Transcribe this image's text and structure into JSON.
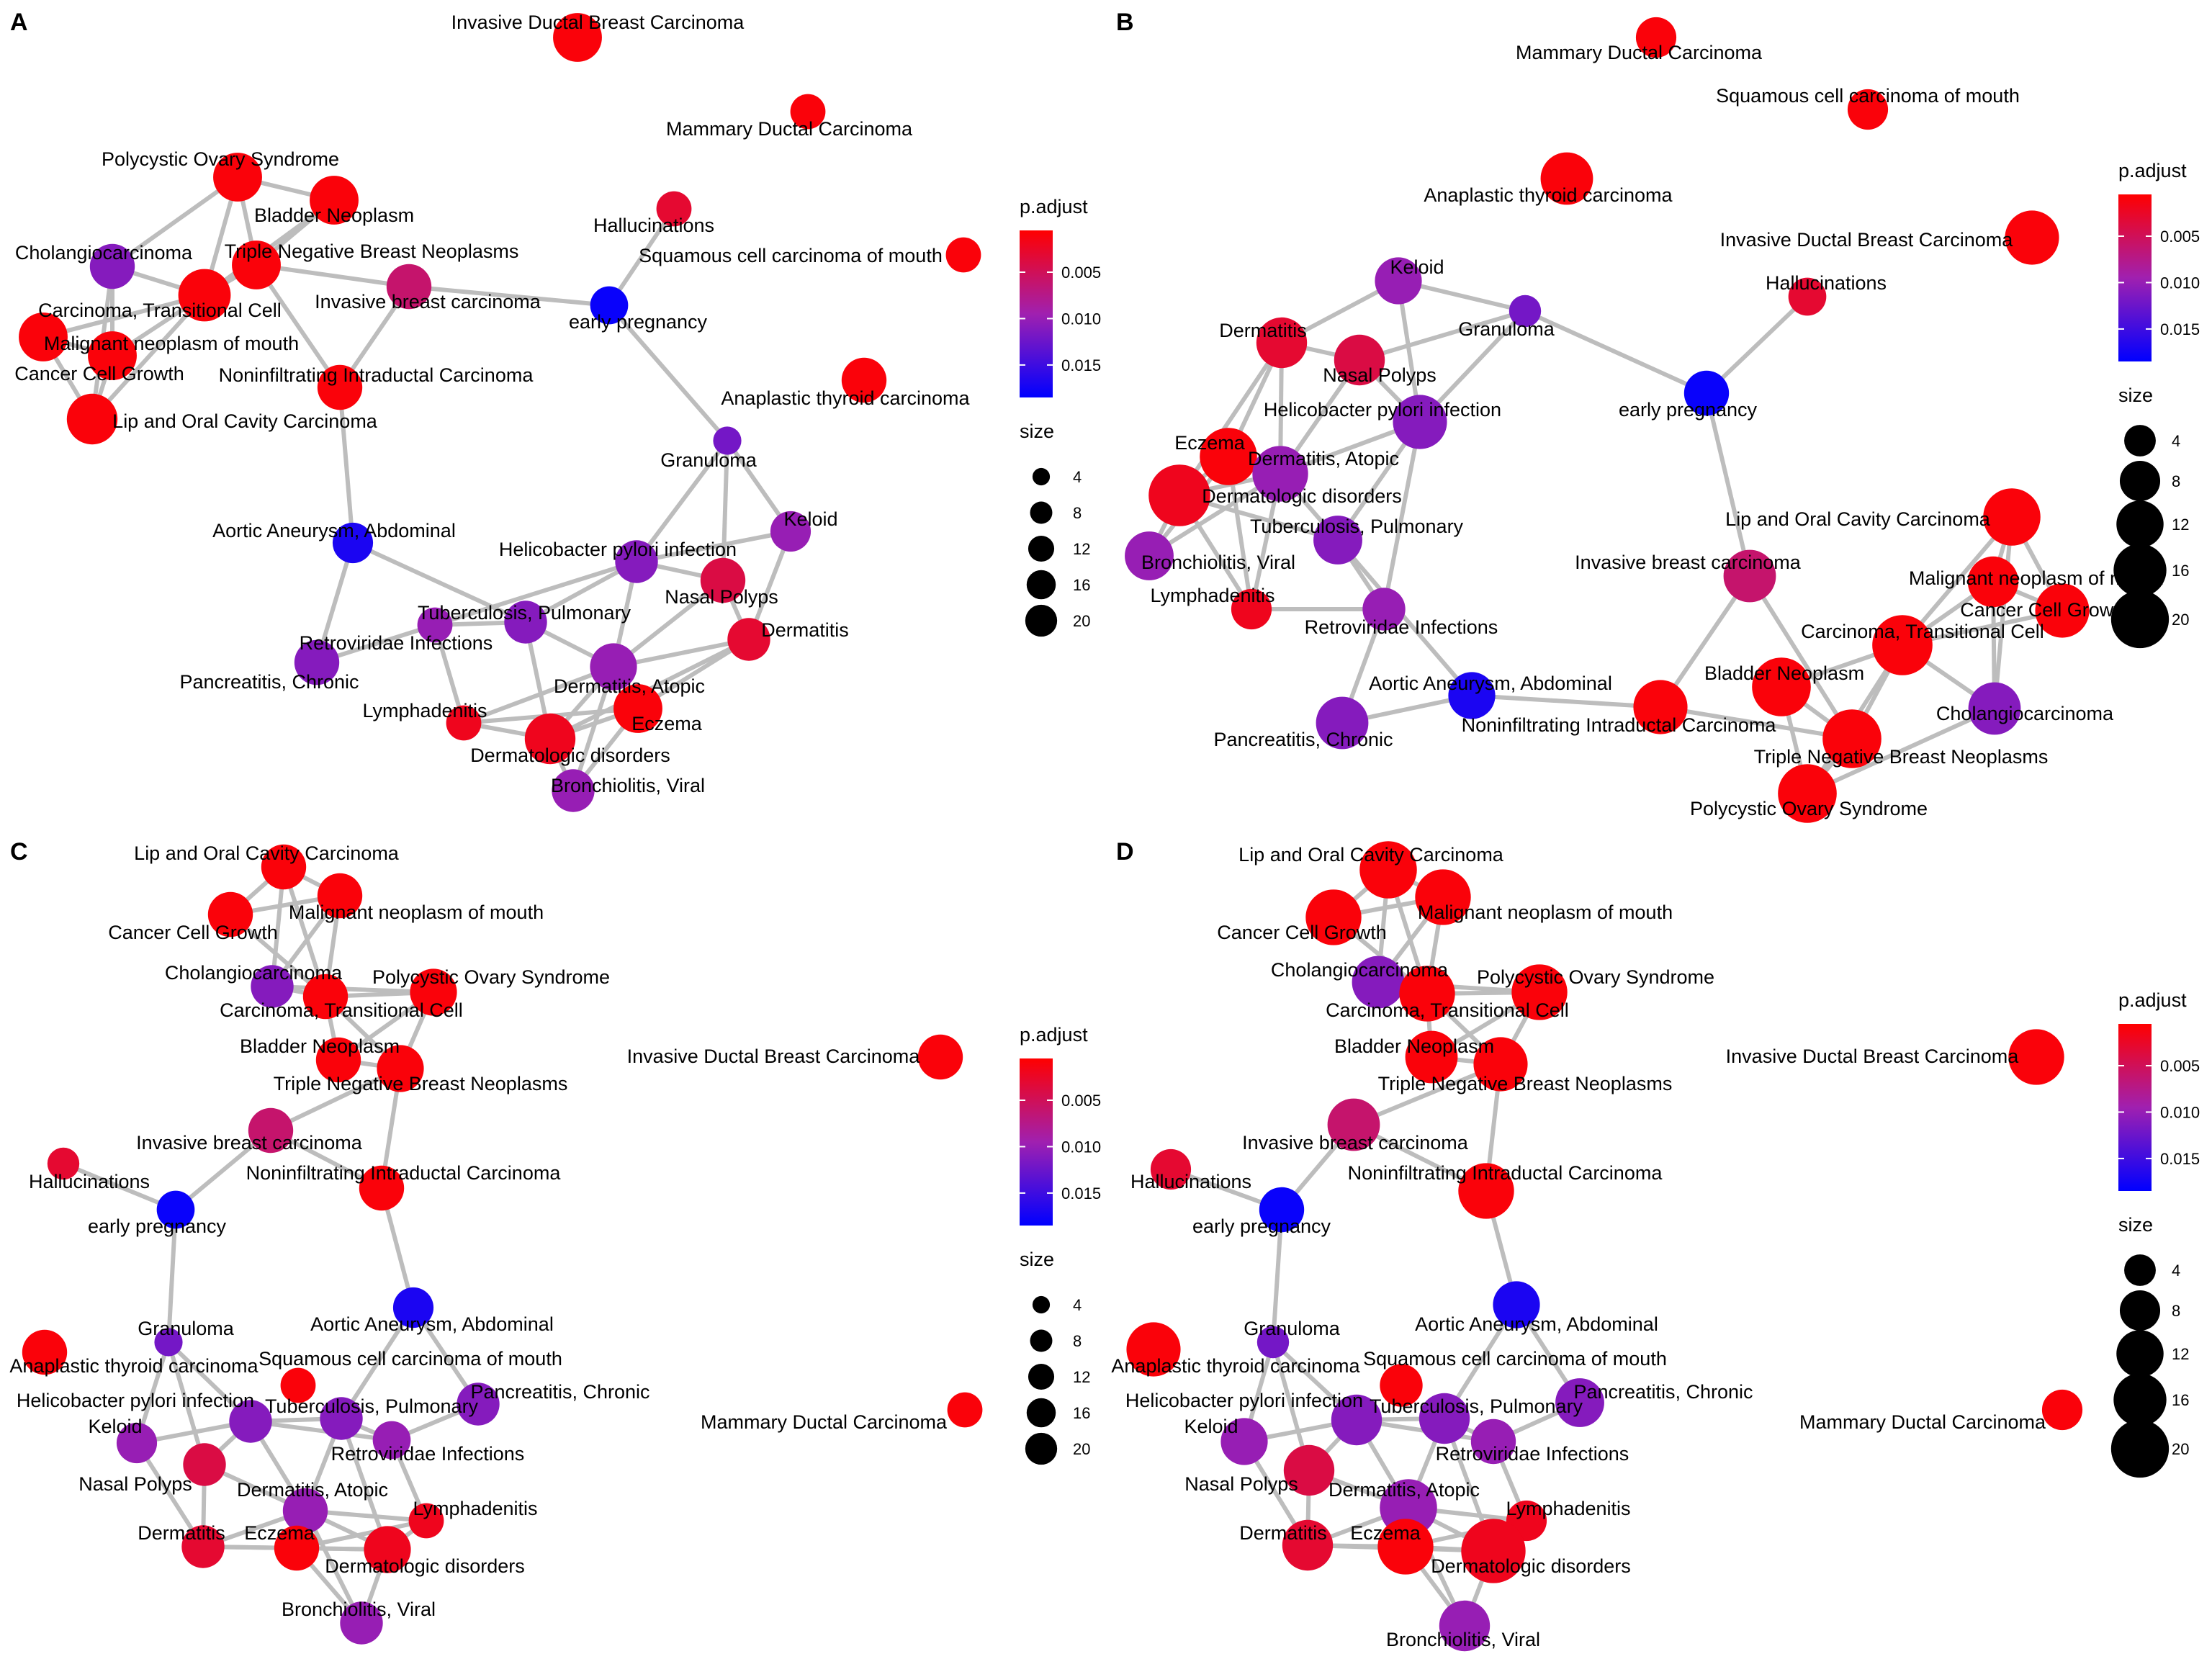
{
  "legend_titles": {
    "color": "p.adjust",
    "size": "size"
  },
  "legend_color_ticks": [
    "0.005",
    "0.010",
    "0.015"
  ],
  "legend_color_values": [
    0.005,
    0.01,
    0.015
  ],
  "legend_color_range": [
    0.0005,
    0.0185
  ],
  "legend_size_ticks": [
    "4",
    "8",
    "12",
    "16",
    "20"
  ],
  "legend_size_values": [
    4,
    8,
    12,
    16,
    20
  ],
  "colors": {
    "low": "#ff0000",
    "mid": "#a020b0",
    "high": "#0000ff",
    "edge": "#bdbdbd"
  },
  "panels": [
    {
      "label": "A",
      "nodes": [
        {
          "name": "Invasive Ductal Breast Carcinoma",
          "size": 10,
          "p": 0.001
        },
        {
          "name": "Mammary Ductal Carcinoma",
          "size": 4,
          "p": 0.001
        },
        {
          "name": "Polycystic Ovary Syndrome",
          "size": 10,
          "p": 0.001
        },
        {
          "name": "Bladder Neoplasm",
          "size": 10,
          "p": 0.001
        },
        {
          "name": "Hallucinations",
          "size": 4,
          "p": 0.003
        },
        {
          "name": "Cholangiocarcinoma",
          "size": 8,
          "p": 0.011
        },
        {
          "name": "Triple Negative Breast Neoplasms",
          "size": 10,
          "p": 0.001
        },
        {
          "name": "Squamous cell carcinoma of mouth",
          "size": 4,
          "p": 0.001
        },
        {
          "name": "Invasive breast carcinoma",
          "size": 8,
          "p": 0.006
        },
        {
          "name": "Carcinoma, Transitional Cell",
          "size": 12,
          "p": 0.001
        },
        {
          "name": "early pregnancy",
          "size": 5,
          "p": 0.018
        },
        {
          "name": "Malignant neoplasm of mouth",
          "size": 10,
          "p": 0.001
        },
        {
          "name": "Cancer Cell Growth",
          "size": 10,
          "p": 0.001
        },
        {
          "name": "Noninfiltrating Intraductal Carcinoma",
          "size": 8,
          "p": 0.001
        },
        {
          "name": "Lip and Oral Cavity Carcinoma",
          "size": 11,
          "p": 0.001
        },
        {
          "name": "Anaplastic thyroid carcinoma",
          "size": 8,
          "p": 0.001
        },
        {
          "name": "Granuloma",
          "size": 2,
          "p": 0.012
        },
        {
          "name": "Keloid",
          "size": 6,
          "p": 0.01
        },
        {
          "name": "Aortic Aneurysm, Abdominal",
          "size": 6,
          "p": 0.017
        },
        {
          "name": "Helicobacter pylori infection",
          "size": 7,
          "p": 0.011
        },
        {
          "name": "Nasal Polyps",
          "size": 8,
          "p": 0.004
        },
        {
          "name": "Tuberculosis, Pulmonary",
          "size": 7,
          "p": 0.011
        },
        {
          "name": "Retroviridae Infections",
          "size": 4,
          "p": 0.01
        },
        {
          "name": "Dermatitis",
          "size": 7,
          "p": 0.003
        },
        {
          "name": "Pancreatitis, Chronic",
          "size": 8,
          "p": 0.011
        },
        {
          "name": "Dermatitis, Atopic",
          "size": 9,
          "p": 0.01
        },
        {
          "name": "Lymphadenitis",
          "size": 4,
          "p": 0.002
        },
        {
          "name": "Eczema",
          "size": 10,
          "p": 0.001
        },
        {
          "name": "Dermatologic disorders",
          "size": 11,
          "p": 0.002
        },
        {
          "name": "Bronchiolitis, Viral",
          "size": 7,
          "p": 0.01
        }
      ]
    },
    {
      "label": "B",
      "nodes": [
        {
          "name": "Mammary Ductal Carcinoma",
          "size": 6,
          "p": 0.001
        },
        {
          "name": "Squamous cell carcinoma of mouth",
          "size": 6,
          "p": 0.001
        },
        {
          "name": "Anaplastic thyroid carcinoma",
          "size": 12,
          "p": 0.001
        },
        {
          "name": "Invasive Ductal Breast Carcinoma",
          "size": 13,
          "p": 0.001
        },
        {
          "name": "Hallucinations",
          "size": 5,
          "p": 0.003
        },
        {
          "name": "Keloid",
          "size": 9,
          "p": 0.01
        },
        {
          "name": "Granuloma",
          "size": 3,
          "p": 0.012
        },
        {
          "name": "Dermatitis",
          "size": 11,
          "p": 0.003
        },
        {
          "name": "Nasal Polyps",
          "size": 11,
          "p": 0.004
        },
        {
          "name": "early pregnancy",
          "size": 8,
          "p": 0.018
        },
        {
          "name": "Helicobacter pylori infection",
          "size": 13,
          "p": 0.011
        },
        {
          "name": "Eczema",
          "size": 15,
          "p": 0.001
        },
        {
          "name": "Dermatitis, Atopic",
          "size": 14,
          "p": 0.01
        },
        {
          "name": "Dermatologic disorders",
          "size": 18,
          "p": 0.002
        },
        {
          "name": "Tuberculosis, Pulmonary",
          "size": 10,
          "p": 0.011
        },
        {
          "name": "Lip and Oral Cavity Carcinoma",
          "size": 15,
          "p": 0.001
        },
        {
          "name": "Bronchiolitis, Viral",
          "size": 10,
          "p": 0.01
        },
        {
          "name": "Invasive breast carcinoma",
          "size": 12,
          "p": 0.006
        },
        {
          "name": "Malignant neoplasm of mouth",
          "size": 11,
          "p": 0.001
        },
        {
          "name": "Lymphadenitis",
          "size": 6,
          "p": 0.002
        },
        {
          "name": "Cancer Cell Growth",
          "size": 13,
          "p": 0.001
        },
        {
          "name": "Retroviridae Infections",
          "size": 7,
          "p": 0.01
        },
        {
          "name": "Carcinoma, Transitional Cell",
          "size": 17,
          "p": 0.001
        },
        {
          "name": "Bladder Neoplasm",
          "size": 16,
          "p": 0.001
        },
        {
          "name": "Aortic Aneurysm, Abdominal",
          "size": 9,
          "p": 0.017
        },
        {
          "name": "Cholangiocarcinoma",
          "size": 12,
          "p": 0.011
        },
        {
          "name": "Noninfiltrating Intraductal Carcinoma",
          "size": 13,
          "p": 0.001
        },
        {
          "name": "Pancreatitis, Chronic",
          "size": 12,
          "p": 0.011
        },
        {
          "name": "Triple Negative Breast Neoplasms",
          "size": 16,
          "p": 0.001
        },
        {
          "name": "Polycystic Ovary Syndrome",
          "size": 16,
          "p": 0.001
        }
      ]
    },
    {
      "label": "C",
      "nodes": [
        {
          "name": "Lip and Oral Cavity Carcinoma",
          "size": 8,
          "p": 0.001
        },
        {
          "name": "Malignant neoplasm of mouth",
          "size": 8,
          "p": 0.001
        },
        {
          "name": "Cancer Cell Growth",
          "size": 8,
          "p": 0.001
        },
        {
          "name": "Cholangiocarcinoma",
          "size": 7,
          "p": 0.011
        },
        {
          "name": "Polycystic Ovary Syndrome",
          "size": 9,
          "p": 0.001
        },
        {
          "name": "Carcinoma, Transitional Cell",
          "size": 8,
          "p": 0.001
        },
        {
          "name": "Bladder Neoplasm",
          "size": 8,
          "p": 0.001
        },
        {
          "name": "Invasive Ductal Breast Carcinoma",
          "size": 8,
          "p": 0.001
        },
        {
          "name": "Triple Negative Breast Neoplasms",
          "size": 9,
          "p": 0.001
        },
        {
          "name": "Invasive breast carcinoma",
          "size": 8,
          "p": 0.006
        },
        {
          "name": "Hallucinations",
          "size": 3,
          "p": 0.003
        },
        {
          "name": "Noninfiltrating Intraductal Carcinoma",
          "size": 8,
          "p": 0.001
        },
        {
          "name": "early pregnancy",
          "size": 5,
          "p": 0.018
        },
        {
          "name": "Aortic Aneurysm, Abdominal",
          "size": 6,
          "p": 0.017
        },
        {
          "name": "Granuloma",
          "size": 2,
          "p": 0.012
        },
        {
          "name": "Anaplastic thyroid carcinoma",
          "size": 8,
          "p": 0.001
        },
        {
          "name": "Squamous cell carcinoma of mouth",
          "size": 4,
          "p": 0.001
        },
        {
          "name": "Pancreatitis, Chronic",
          "size": 7,
          "p": 0.011
        },
        {
          "name": "Helicobacter pylori infection",
          "size": 7,
          "p": 0.011
        },
        {
          "name": "Tuberculosis, Pulmonary",
          "size": 7,
          "p": 0.011
        },
        {
          "name": "Mammary Ductal Carcinoma",
          "size": 4,
          "p": 0.001
        },
        {
          "name": "Keloid",
          "size": 6,
          "p": 0.01
        },
        {
          "name": "Retroviridae Infections",
          "size": 5,
          "p": 0.01
        },
        {
          "name": "Nasal Polyps",
          "size": 7,
          "p": 0.004
        },
        {
          "name": "Dermatitis, Atopic",
          "size": 8,
          "p": 0.01
        },
        {
          "name": "Lymphadenitis",
          "size": 4,
          "p": 0.002
        },
        {
          "name": "Dermatitis",
          "size": 7,
          "p": 0.003
        },
        {
          "name": "Eczema",
          "size": 8,
          "p": 0.001
        },
        {
          "name": "Dermatologic disorders",
          "size": 9,
          "p": 0.002
        },
        {
          "name": "Bronchiolitis, Viral",
          "size": 7,
          "p": 0.01
        }
      ]
    },
    {
      "label": "D",
      "nodes": [
        {
          "name": "Lip and Oral Cavity Carcinoma",
          "size": 15,
          "p": 0.001
        },
        {
          "name": "Malignant neoplasm of mouth",
          "size": 14,
          "p": 0.001
        },
        {
          "name": "Cancer Cell Growth",
          "size": 14,
          "p": 0.001
        },
        {
          "name": "Cholangiocarcinoma",
          "size": 12,
          "p": 0.011
        },
        {
          "name": "Polycystic Ovary Syndrome",
          "size": 14,
          "p": 0.001
        },
        {
          "name": "Carcinoma, Transitional Cell",
          "size": 14,
          "p": 0.001
        },
        {
          "name": "Bladder Neoplasm",
          "size": 12,
          "p": 0.001
        },
        {
          "name": "Invasive Ductal Breast Carcinoma",
          "size": 14,
          "p": 0.001
        },
        {
          "name": "Triple Negative Breast Neoplasms",
          "size": 13,
          "p": 0.001
        },
        {
          "name": "Invasive breast carcinoma",
          "size": 12,
          "p": 0.006
        },
        {
          "name": "Hallucinations",
          "size": 6,
          "p": 0.003
        },
        {
          "name": "Noninfiltrating Intraductal Carcinoma",
          "size": 14,
          "p": 0.001
        },
        {
          "name": "early pregnancy",
          "size": 8,
          "p": 0.018
        },
        {
          "name": "Aortic Aneurysm, Abdominal",
          "size": 9,
          "p": 0.017
        },
        {
          "name": "Granuloma",
          "size": 3,
          "p": 0.012
        },
        {
          "name": "Anaplastic thyroid carcinoma",
          "size": 13,
          "p": 0.001
        },
        {
          "name": "Squamous cell carcinoma of mouth",
          "size": 7,
          "p": 0.001
        },
        {
          "name": "Pancreatitis, Chronic",
          "size": 10,
          "p": 0.011
        },
        {
          "name": "Helicobacter pylori infection",
          "size": 11,
          "p": 0.011
        },
        {
          "name": "Tuberculosis, Pulmonary",
          "size": 11,
          "p": 0.011
        },
        {
          "name": "Mammary Ductal Carcinoma",
          "size": 6,
          "p": 0.001
        },
        {
          "name": "Keloid",
          "size": 9,
          "p": 0.01
        },
        {
          "name": "Retroviridae Infections",
          "size": 8,
          "p": 0.01
        },
        {
          "name": "Nasal Polyps",
          "size": 11,
          "p": 0.004
        },
        {
          "name": "Dermatitis, Atopic",
          "size": 15,
          "p": 0.01
        },
        {
          "name": "Lymphadenitis",
          "size": 6,
          "p": 0.002
        },
        {
          "name": "Dermatitis",
          "size": 11,
          "p": 0.003
        },
        {
          "name": "Eczema",
          "size": 14,
          "p": 0.001
        },
        {
          "name": "Dermatologic disorders",
          "size": 20,
          "p": 0.002
        },
        {
          "name": "Bronchiolitis, Viral",
          "size": 11,
          "p": 0.01
        }
      ]
    }
  ]
}
